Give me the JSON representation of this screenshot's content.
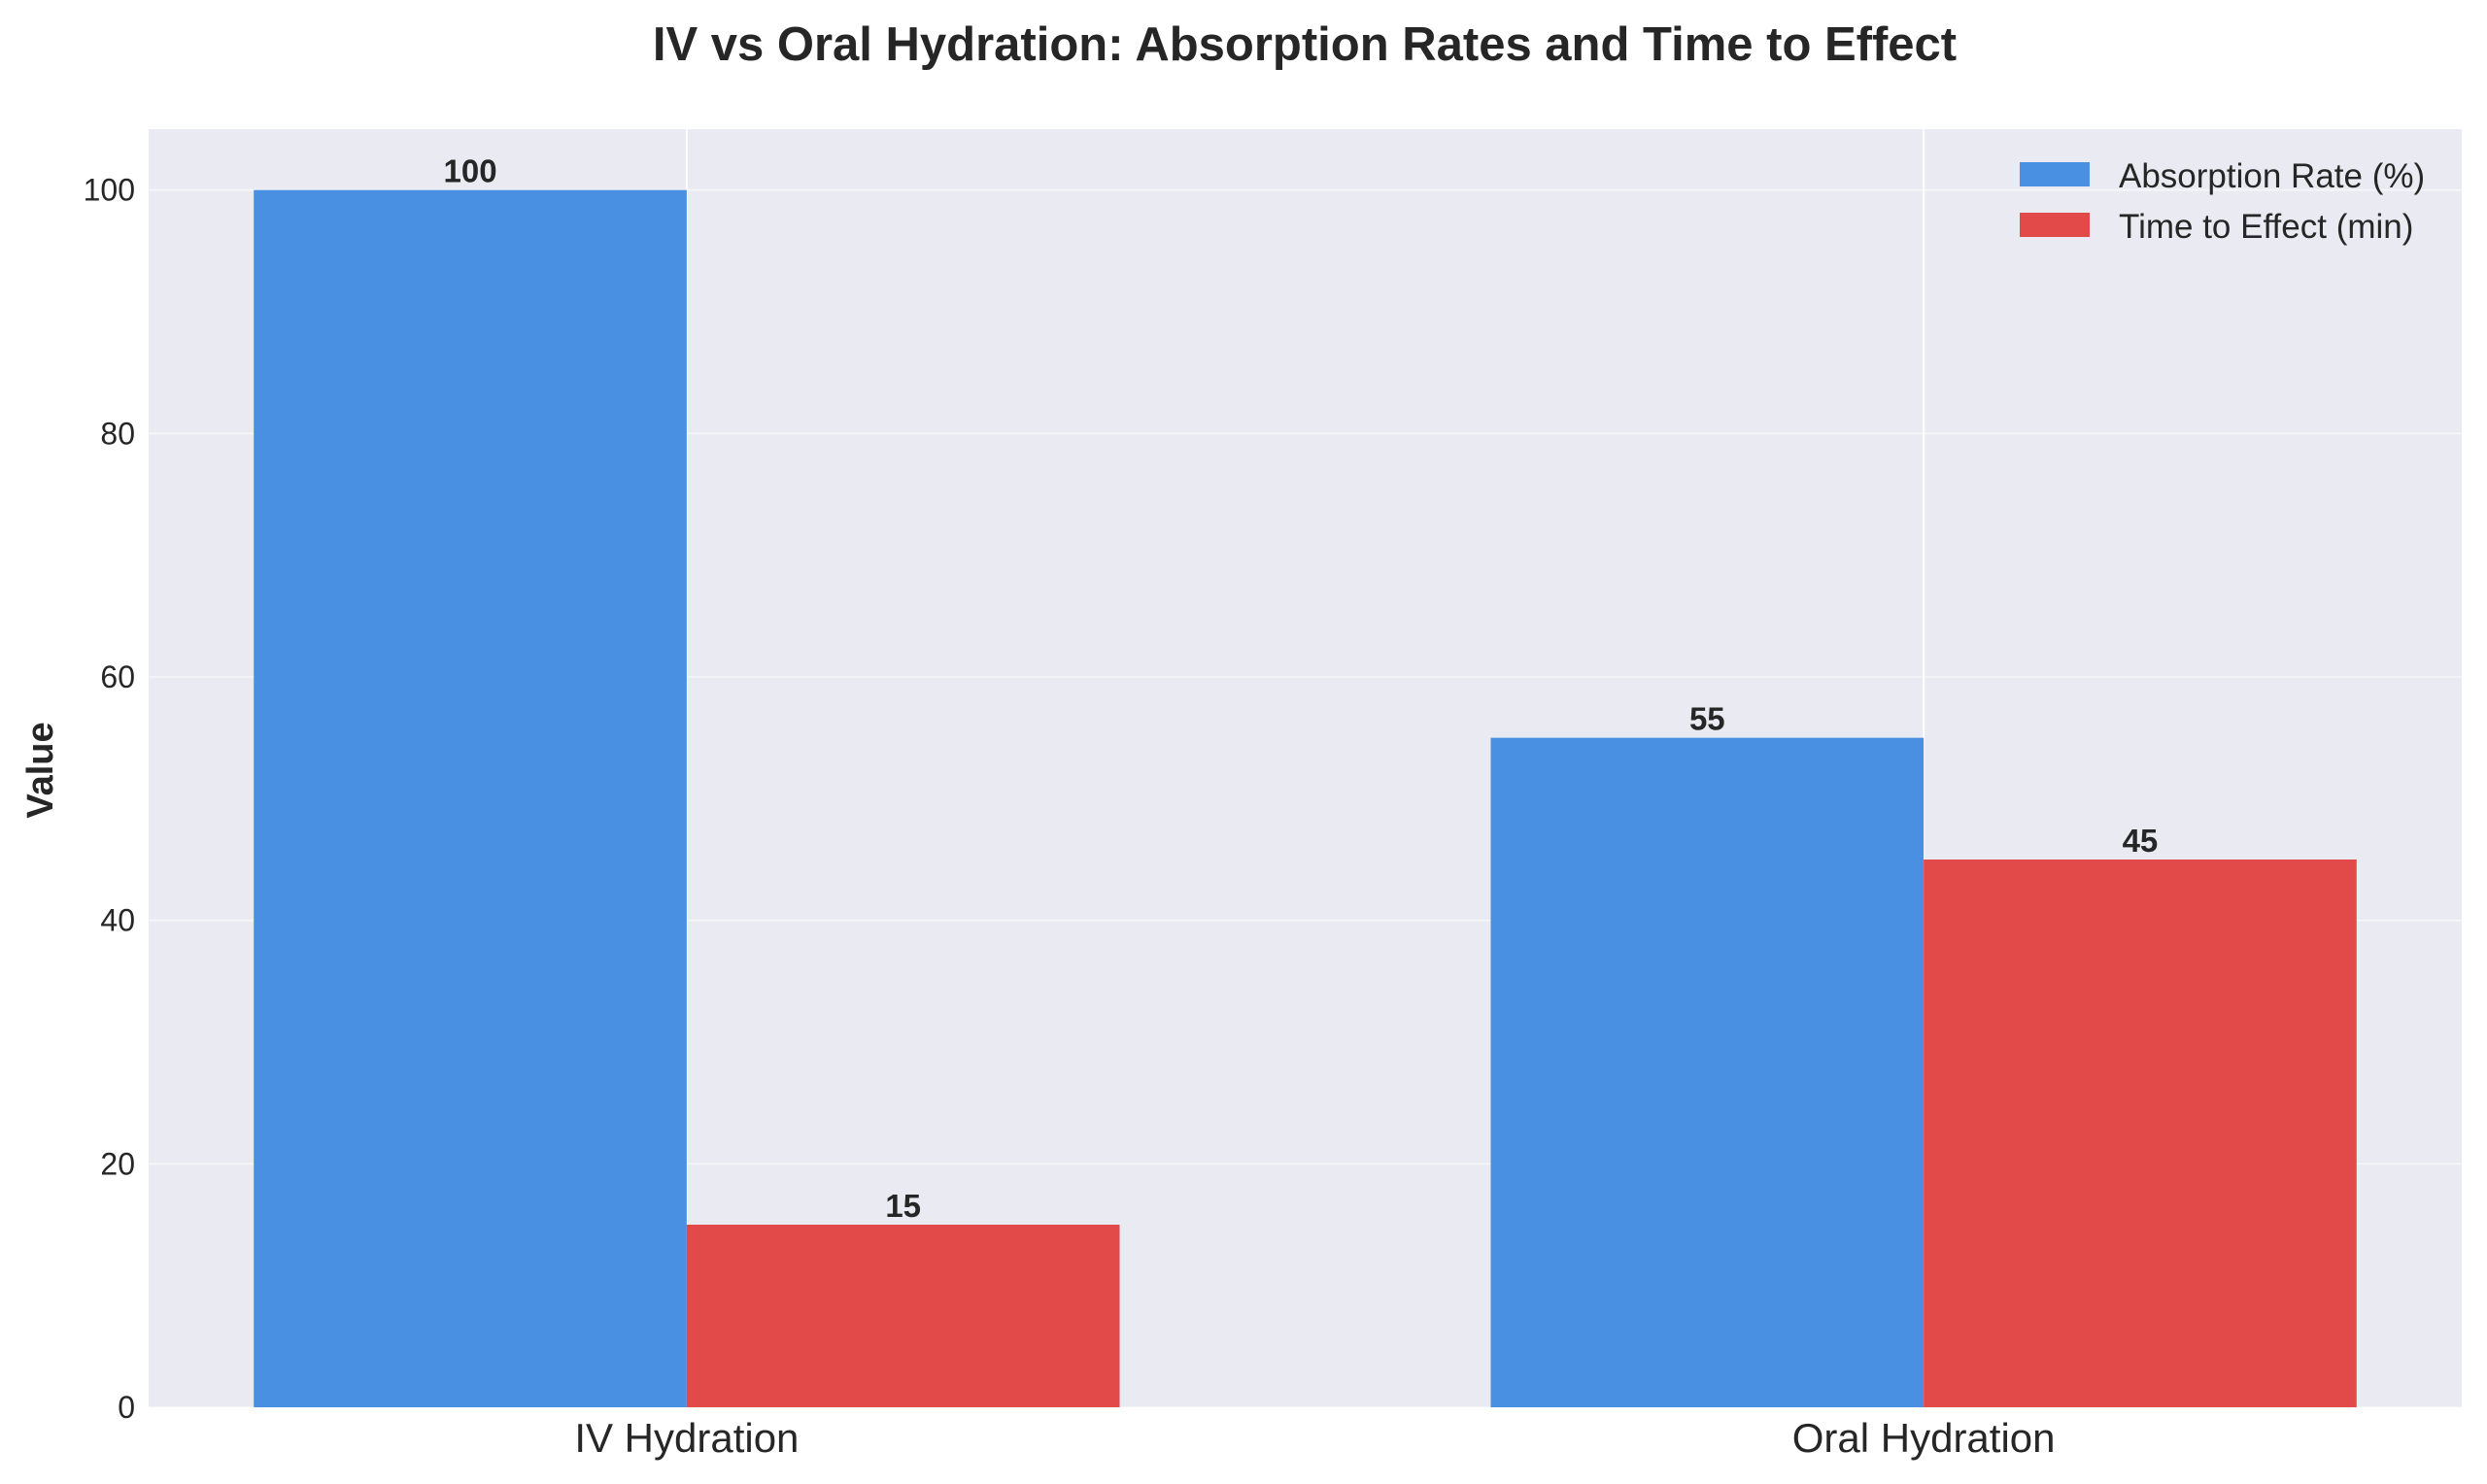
{
  "chart_data": {
    "type": "bar",
    "title": "IV vs Oral Hydration: Absorption Rates and Time to Effect",
    "xlabel": "",
    "ylabel": "Value",
    "categories": [
      "IV Hydration",
      "Oral Hydration"
    ],
    "series": [
      {
        "name": "Absorption Rate (%)",
        "color": "#4A90E2",
        "values": [
          100,
          55
        ]
      },
      {
        "name": "Time to Effect (min)",
        "color": "#E24A4A",
        "values": [
          15,
          45
        ]
      }
    ],
    "value_labels": [
      [
        "100",
        "55"
      ],
      [
        "15",
        "45"
      ]
    ],
    "ylim": [
      0,
      105
    ],
    "yticks": [
      0,
      20,
      40,
      60,
      80,
      100
    ],
    "ytick_labels": [
      "0",
      "20",
      "40",
      "60",
      "80",
      "100"
    ],
    "bar_width": 0.35,
    "xlim": [
      -0.435,
      1.435
    ],
    "grid": true,
    "legend_position": "top-right",
    "background_color": "#EAEAF2"
  }
}
